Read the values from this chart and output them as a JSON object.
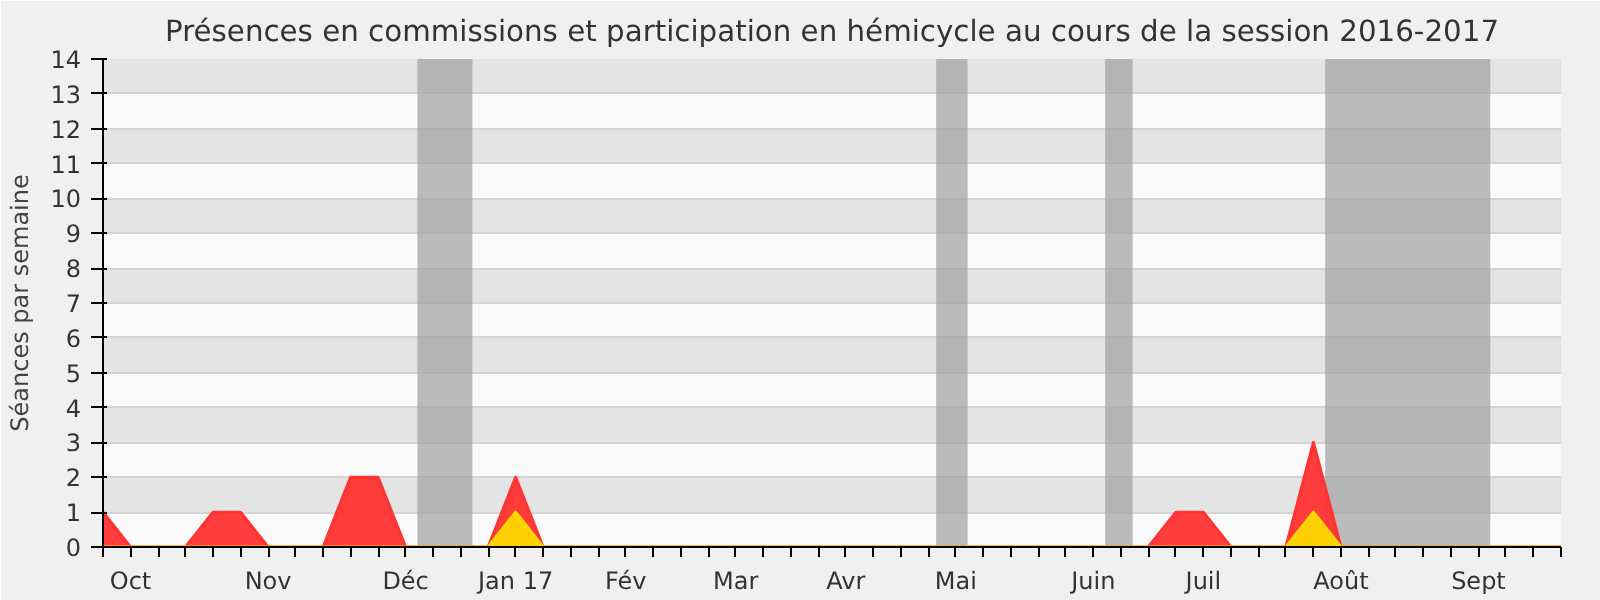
{
  "chart_data": {
    "type": "area",
    "title": "Présences en commissions et participation en hémicycle au cours de la session 2016-2017",
    "ylabel": "Séances par semaine",
    "x": [
      "2016-09-26",
      "2016-10-03",
      "2016-10-10",
      "2016-10-17",
      "2016-10-24",
      "2016-10-31",
      "2016-11-07",
      "2016-11-14",
      "2016-11-21",
      "2016-11-28",
      "2016-12-05",
      "2016-12-12",
      "2016-12-19",
      "2016-12-26",
      "2017-01-02",
      "2017-01-09",
      "2017-01-16",
      "2017-01-23",
      "2017-01-30",
      "2017-02-06",
      "2017-02-13",
      "2017-02-20",
      "2017-02-27",
      "2017-03-06",
      "2017-03-13",
      "2017-03-20",
      "2017-03-27",
      "2017-04-03",
      "2017-04-10",
      "2017-04-17",
      "2017-04-24",
      "2017-05-01",
      "2017-05-08",
      "2017-05-15",
      "2017-05-22",
      "2017-05-29",
      "2017-06-05",
      "2017-06-12",
      "2017-06-19",
      "2017-06-26",
      "2017-07-03",
      "2017-07-10",
      "2017-07-17",
      "2017-07-24",
      "2017-07-31",
      "2017-08-07",
      "2017-08-14",
      "2017-08-21",
      "2017-08-28",
      "2017-09-04",
      "2017-09-11",
      "2017-09-18",
      "2017-09-25",
      "2017-10-02"
    ],
    "series": [
      {
        "color": "#ff3333",
        "values": [
          1,
          0,
          0,
          0,
          1,
          1,
          0,
          0,
          0,
          2,
          2,
          0,
          0,
          0,
          0,
          2,
          0,
          0,
          0,
          0,
          0,
          0,
          0,
          0,
          0,
          0,
          0,
          0,
          0,
          0,
          0,
          0,
          0,
          0,
          0,
          0,
          0,
          0,
          0,
          1,
          1,
          0,
          0,
          0,
          3,
          0,
          0,
          0,
          0,
          0,
          0,
          0,
          0,
          0
        ]
      },
      {
        "color": "#ffd700",
        "values": [
          0,
          0,
          0,
          0,
          0,
          0,
          0,
          0,
          0,
          0,
          0,
          0,
          0,
          0,
          0,
          1,
          0,
          0,
          0,
          0,
          0,
          0,
          0,
          0,
          0,
          0,
          0,
          0,
          0,
          0,
          0,
          0,
          0,
          0,
          0,
          0,
          0,
          0,
          0,
          0,
          0,
          0,
          0,
          0,
          1,
          0,
          0,
          0,
          0,
          0,
          0,
          0,
          0,
          0
        ]
      }
    ],
    "xlim": [
      "2016-09-26",
      "2017-10-02"
    ],
    "xticks": [
      {
        "value": "2016-09-26",
        "label": null
      },
      {
        "value": "2016-10-03",
        "label": "Oct"
      },
      {
        "value": "2016-10-10",
        "label": null
      },
      {
        "value": "2016-10-17",
        "label": null
      },
      {
        "value": "2016-10-24",
        "label": null
      },
      {
        "value": "2016-10-31",
        "label": null
      },
      {
        "value": "2016-11-07",
        "label": "Nov"
      },
      {
        "value": "2016-11-14",
        "label": null
      },
      {
        "value": "2016-11-21",
        "label": null
      },
      {
        "value": "2016-11-28",
        "label": null
      },
      {
        "value": "2016-12-05",
        "label": null
      },
      {
        "value": "2016-12-12",
        "label": "Déc"
      },
      {
        "value": "2016-12-19",
        "label": null
      },
      {
        "value": "2016-12-26",
        "label": null
      },
      {
        "value": "2017-01-02",
        "label": null
      },
      {
        "value": "2017-01-09",
        "label": "Jan 17"
      },
      {
        "value": "2017-01-16",
        "label": null
      },
      {
        "value": "2017-01-23",
        "label": null
      },
      {
        "value": "2017-01-30",
        "label": null
      },
      {
        "value": "2017-02-06",
        "label": "Fév"
      },
      {
        "value": "2017-02-13",
        "label": null
      },
      {
        "value": "2017-02-20",
        "label": null
      },
      {
        "value": "2017-02-27",
        "label": null
      },
      {
        "value": "2017-03-06",
        "label": "Mar"
      },
      {
        "value": "2017-03-13",
        "label": null
      },
      {
        "value": "2017-03-20",
        "label": null
      },
      {
        "value": "2017-03-27",
        "label": null
      },
      {
        "value": "2017-04-03",
        "label": "Avr"
      },
      {
        "value": "2017-04-10",
        "label": null
      },
      {
        "value": "2017-04-17",
        "label": null
      },
      {
        "value": "2017-04-24",
        "label": null
      },
      {
        "value": "2017-05-01",
        "label": "Mai"
      },
      {
        "value": "2017-05-08",
        "label": null
      },
      {
        "value": "2017-05-15",
        "label": null
      },
      {
        "value": "2017-05-22",
        "label": null
      },
      {
        "value": "2017-05-29",
        "label": null
      },
      {
        "value": "2017-06-05",
        "label": "Juin"
      },
      {
        "value": "2017-06-12",
        "label": null
      },
      {
        "value": "2017-06-19",
        "label": null
      },
      {
        "value": "2017-06-26",
        "label": null
      },
      {
        "value": "2017-07-03",
        "label": "Juil"
      },
      {
        "value": "2017-07-10",
        "label": null
      },
      {
        "value": "2017-07-17",
        "label": null
      },
      {
        "value": "2017-07-24",
        "label": null
      },
      {
        "value": "2017-07-31",
        "label": null
      },
      {
        "value": "2017-08-07",
        "label": "Août"
      },
      {
        "value": "2017-08-14",
        "label": null
      },
      {
        "value": "2017-08-21",
        "label": null
      },
      {
        "value": "2017-08-28",
        "label": null
      },
      {
        "value": "2017-09-04",
        "label": null
      },
      {
        "value": "2017-09-11",
        "label": "Sept"
      },
      {
        "value": "2017-09-18",
        "label": null
      },
      {
        "value": "2017-09-25",
        "label": null
      },
      {
        "value": "2017-10-02",
        "label": null
      }
    ],
    "ylim": [
      0,
      14
    ],
    "yticks": [
      0,
      1,
      2,
      3,
      4,
      5,
      6,
      7,
      8,
      9,
      10,
      11,
      12,
      13,
      14
    ],
    "grid": "y",
    "bands": [
      {
        "axis": "x",
        "from": "2016-12-15",
        "to": "2016-12-29",
        "color": "#a0a0a0"
      },
      {
        "axis": "x",
        "from": "2017-04-26",
        "to": "2017-05-04",
        "color": "#a0a0a0"
      },
      {
        "axis": "x",
        "from": "2017-06-08",
        "to": "2017-06-15",
        "color": "#a0a0a0"
      },
      {
        "axis": "x",
        "from": "2017-08-03",
        "to": "2017-09-14",
        "color": "#a0a0a0"
      }
    ]
  }
}
